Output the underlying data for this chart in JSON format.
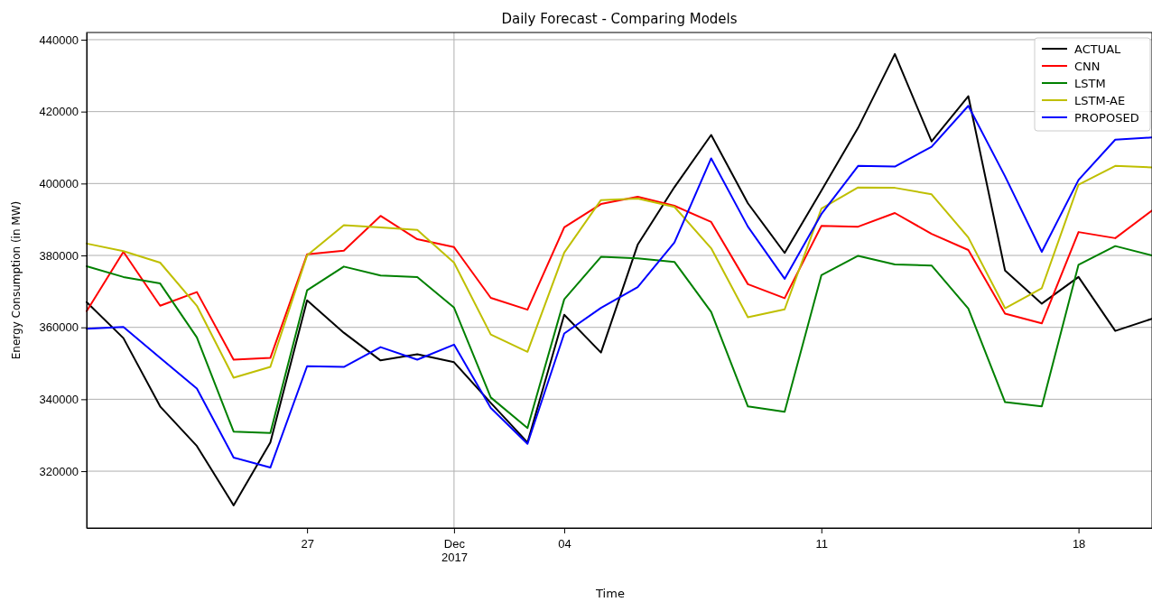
{
  "chart_data": {
    "type": "line",
    "title": "Daily Forecast - Comparing Models",
    "xlabel": "Time",
    "ylabel": "Energy Consumption (in MW)",
    "x": [
      "2017-11-21",
      "2017-11-22",
      "2017-11-23",
      "2017-11-24",
      "2017-11-25",
      "2017-11-26",
      "2017-11-27",
      "2017-11-28",
      "2017-11-29",
      "2017-11-30",
      "2017-12-01",
      "2017-12-02",
      "2017-12-03",
      "2017-12-04",
      "2017-12-05",
      "2017-12-06",
      "2017-12-07",
      "2017-12-08",
      "2017-12-09",
      "2017-12-10",
      "2017-12-11",
      "2017-12-12",
      "2017-12-13",
      "2017-12-14",
      "2017-12-15",
      "2017-12-16",
      "2017-12-17",
      "2017-12-18",
      "2017-12-19",
      "2017-12-20"
    ],
    "series": [
      {
        "name": "ACTUAL",
        "color": "#000000",
        "values": [
          367000,
          357000,
          338000,
          327000,
          310500,
          328000,
          367500,
          358500,
          350800,
          352500,
          350300,
          339000,
          328000,
          363500,
          353000,
          383000,
          399000,
          413500,
          394500,
          380700,
          398000,
          415500,
          436000,
          411700,
          424300,
          375800,
          366600,
          374000,
          359000,
          362400
        ]
      },
      {
        "name": "CNN",
        "color": "#ff0000",
        "values": [
          364500,
          381000,
          366000,
          369800,
          351000,
          351500,
          380300,
          381300,
          391000,
          384500,
          382300,
          368200,
          364900,
          387800,
          394300,
          396300,
          393800,
          389300,
          372000,
          368100,
          388200,
          388000,
          391800,
          386000,
          381500,
          363800,
          361100,
          386500,
          384800,
          392500
        ]
      },
      {
        "name": "LSTM",
        "color": "#008000",
        "values": [
          377000,
          374000,
          372200,
          357200,
          331000,
          330600,
          370300,
          376900,
          374400,
          374000,
          365500,
          340500,
          332000,
          367800,
          379600,
          379200,
          378200,
          364300,
          338000,
          336500,
          374500,
          379900,
          377500,
          377200,
          365200,
          339200,
          338000,
          377400,
          382600,
          380000
        ]
      },
      {
        "name": "LSTM-AE",
        "color": "#bfbf00",
        "values": [
          383300,
          381200,
          378000,
          366000,
          346000,
          349000,
          380000,
          388400,
          387800,
          387100,
          378000,
          358000,
          353200,
          380800,
          395400,
          395800,
          393500,
          382000,
          362800,
          365000,
          393000,
          398900,
          398800,
          397000,
          385000,
          365300,
          370900,
          399700,
          404900,
          404500
        ]
      },
      {
        "name": "PROPOSED",
        "color": "#0000ff",
        "values": [
          359600,
          360100,
          351500,
          343000,
          323800,
          321000,
          349200,
          349000,
          354500,
          351000,
          355200,
          337600,
          327600,
          358300,
          365400,
          371200,
          383600,
          407000,
          388000,
          373500,
          391500,
          404900,
          404700,
          410200,
          421600,
          402000,
          381000,
          401000,
          412200,
          412800
        ]
      }
    ],
    "xlim": [
      "2017-11-21",
      "2017-12-20"
    ],
    "xticks": [
      {
        "value": "2017-11-27",
        "label": "27"
      },
      {
        "value": "2017-12-01",
        "label": "Dec\n2017"
      },
      {
        "value": "2017-12-04",
        "label": "04"
      },
      {
        "value": "2017-12-11",
        "label": "11"
      },
      {
        "value": "2017-12-18",
        "label": "18"
      }
    ],
    "ylim": [
      304200,
      442000
    ],
    "yticks": [
      320000,
      340000,
      360000,
      380000,
      400000,
      420000,
      440000
    ],
    "grid": "y",
    "ref_lines": [
      {
        "axis": "x",
        "value": "2017-12-01",
        "color": "#b0b0b0"
      }
    ],
    "legend": "top right",
    "marker": "none",
    "line_style": "solid"
  }
}
